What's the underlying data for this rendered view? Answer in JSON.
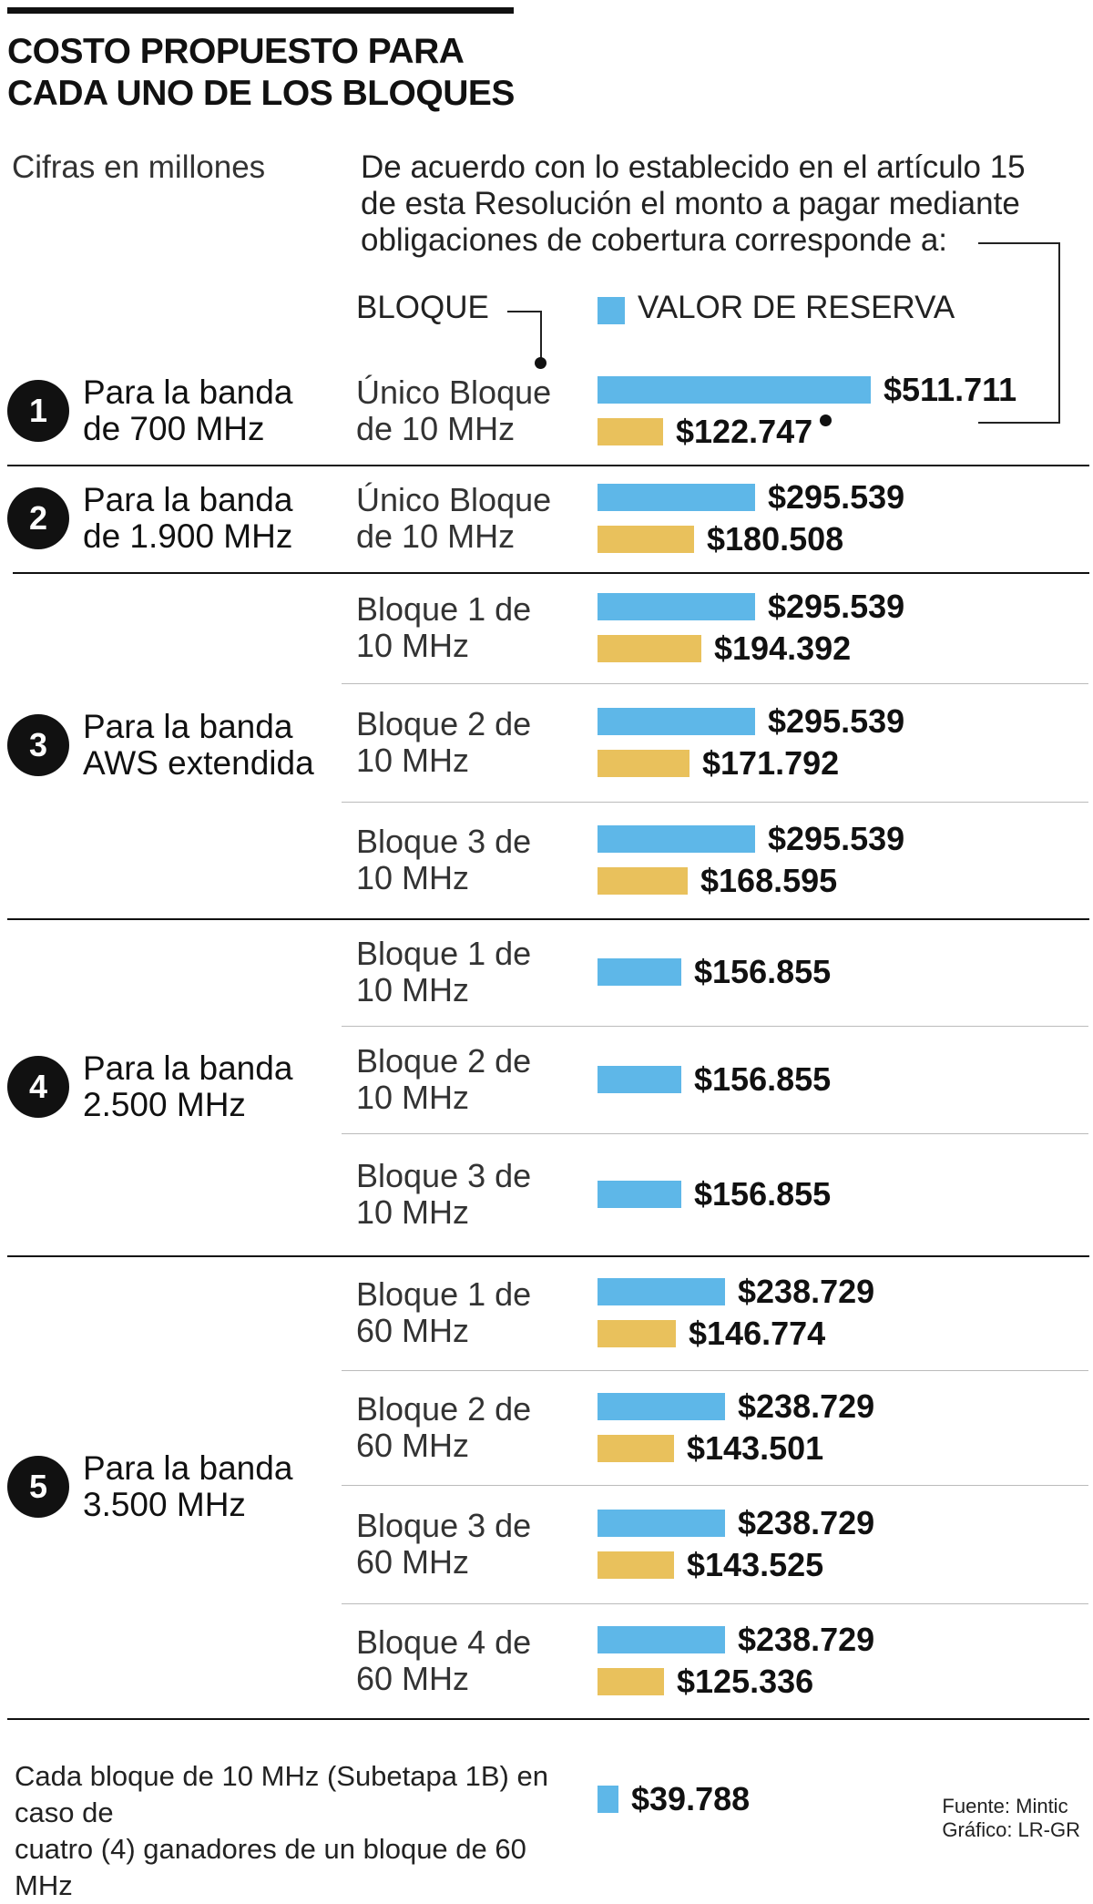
{
  "colors": {
    "reserve": "#5eb7e8",
    "coverage": "#e9c15c",
    "text": "#111111",
    "circle": "#111111"
  },
  "header": {
    "title_line1": "COSTO PROPUESTO PARA",
    "title_line2": "CADA UNO DE LOS BLOQUES",
    "subtitle": "Cifras en millones",
    "note_line1": "De acuerdo con lo establecido en el artículo 15",
    "note_line2": "de esta Resolución el monto a pagar mediante",
    "note_line3": "obligaciones de cobertura corresponde a:",
    "col_block": "BLOQUE",
    "col_reserve": "VALOR DE RESERVA"
  },
  "chart_data": {
    "type": "bar",
    "title": "COSTO PROPUESTO PARA CADA UNO DE LOS BLOQUES",
    "units": "Cifras en millones",
    "series": [
      {
        "name": "VALOR DE RESERVA",
        "color": "#5eb7e8"
      },
      {
        "name": "obligaciones de cobertura",
        "color": "#e9c15c"
      }
    ],
    "bands": [
      {
        "num": "1",
        "line1": "Para la banda",
        "line2": "de 700 MHz",
        "blocks": [
          {
            "line1": "Único Bloque",
            "line2": "de 10 MHz",
            "reserve": 511711,
            "coverage": 122747,
            "reserve_label": "$511.711",
            "coverage_label": "$122.747"
          }
        ]
      },
      {
        "num": "2",
        "line1": "Para la banda",
        "line2": "de 1.900 MHz",
        "blocks": [
          {
            "line1": "Único Bloque",
            "line2": "de 10 MHz",
            "reserve": 295539,
            "coverage": 180508,
            "reserve_label": "$295.539",
            "coverage_label": "$180.508"
          }
        ]
      },
      {
        "num": "3",
        "line1": "Para la banda",
        "line2": "AWS extendida",
        "blocks": [
          {
            "line1": "Bloque 1 de",
            "line2": "10 MHz",
            "reserve": 295539,
            "coverage": 194392,
            "reserve_label": "$295.539",
            "coverage_label": "$194.392"
          },
          {
            "line1": "Bloque 2 de",
            "line2": "10 MHz",
            "reserve": 295539,
            "coverage": 171792,
            "reserve_label": "$295.539",
            "coverage_label": "$171.792"
          },
          {
            "line1": "Bloque 3 de",
            "line2": "10 MHz",
            "reserve": 295539,
            "coverage": 168595,
            "reserve_label": "$295.539",
            "coverage_label": "$168.595"
          }
        ]
      },
      {
        "num": "4",
        "line1": "Para la banda",
        "line2": "2.500 MHz",
        "blocks": [
          {
            "line1": "Bloque 1 de",
            "line2": "10 MHz",
            "reserve": 156855,
            "reserve_label": "$156.855"
          },
          {
            "line1": "Bloque 2 de",
            "line2": "10 MHz",
            "reserve": 156855,
            "reserve_label": "$156.855"
          },
          {
            "line1": "Bloque 3 de",
            "line2": "10 MHz",
            "reserve": 156855,
            "reserve_label": "$156.855"
          }
        ]
      },
      {
        "num": "5",
        "line1": "Para la banda",
        "line2": "3.500 MHz",
        "blocks": [
          {
            "line1": "Bloque 1 de",
            "line2": "60 MHz",
            "reserve": 238729,
            "coverage": 146774,
            "reserve_label": "$238.729",
            "coverage_label": "$146.774"
          },
          {
            "line1": "Bloque 2 de",
            "line2": "60 MHz",
            "reserve": 238729,
            "coverage": 143501,
            "reserve_label": "$238.729",
            "coverage_label": "$143.501"
          },
          {
            "line1": "Bloque 3 de",
            "line2": "60 MHz",
            "reserve": 238729,
            "coverage": 143525,
            "reserve_label": "$238.729",
            "coverage_label": "$143.525"
          },
          {
            "line1": "Bloque 4 de",
            "line2": "60 MHz",
            "reserve": 238729,
            "coverage": 125336,
            "reserve_label": "$238.729",
            "coverage_label": "$125.336"
          }
        ]
      }
    ],
    "extra": {
      "line1": "Cada bloque de 10 MHz (Subetapa 1B) en caso de",
      "line2": "cuatro (4) ganadores de un bloque de 60 MHz",
      "reserve": 39788,
      "reserve_label": "$39.788"
    }
  },
  "footer": {
    "source": "Fuente: Mintic",
    "graphic": "Gráfico: LR-GR"
  }
}
